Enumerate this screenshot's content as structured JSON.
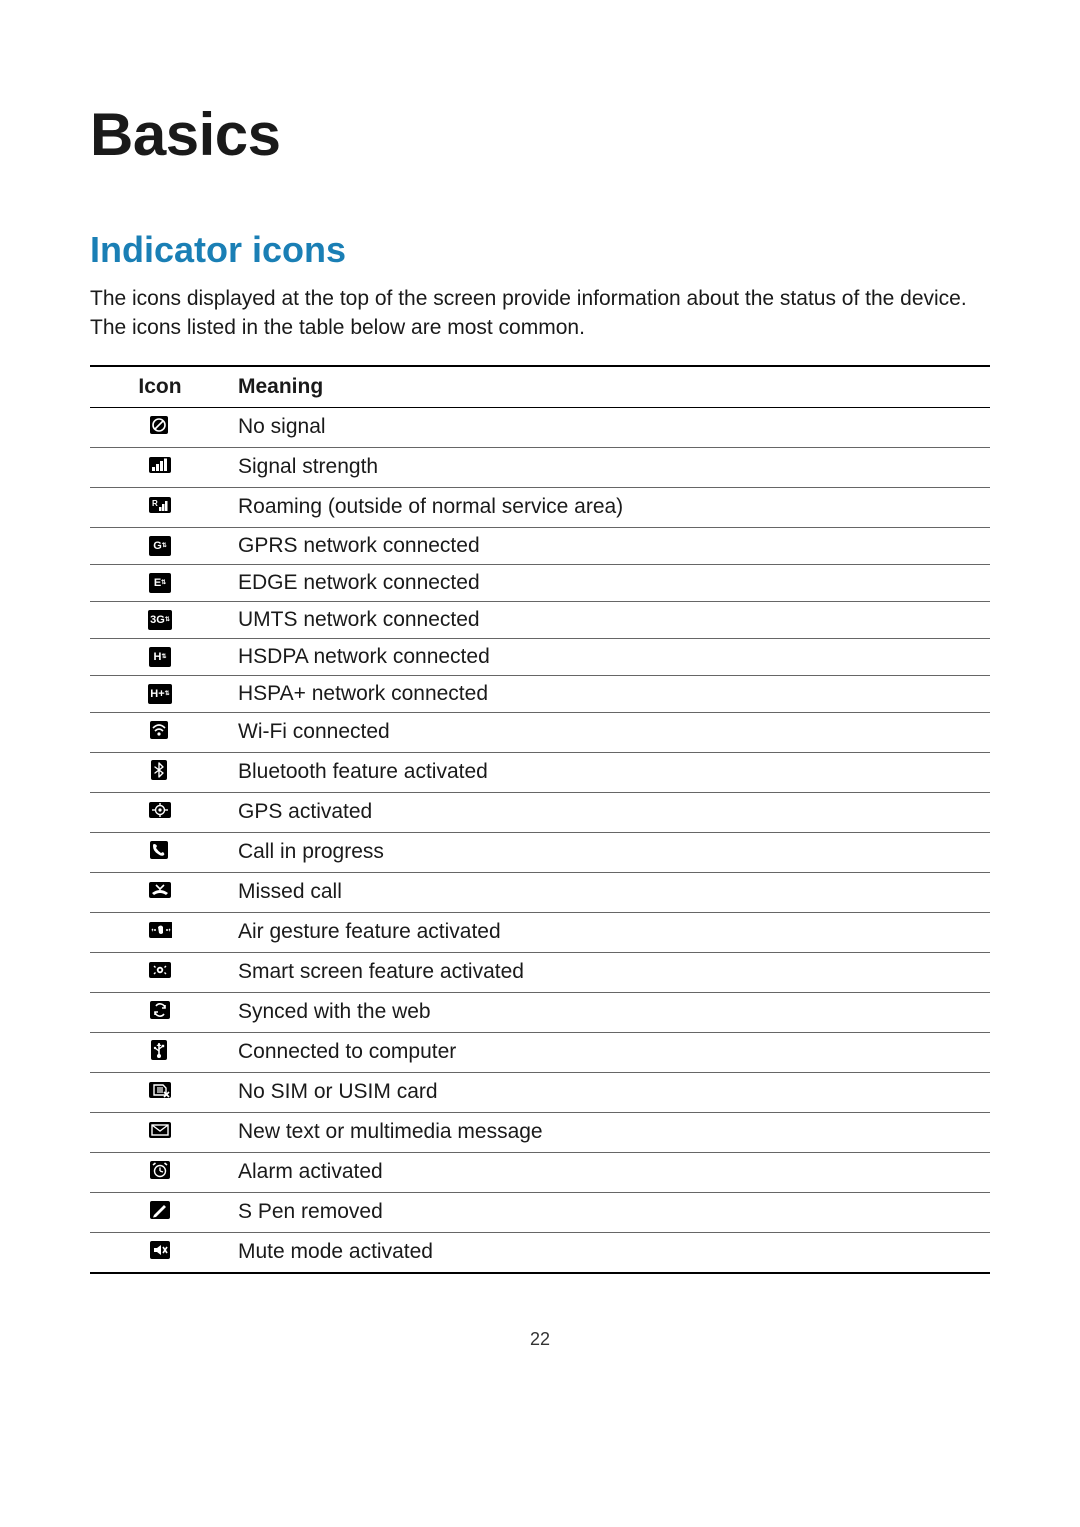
{
  "page": {
    "title": "Basics",
    "section_title": "Indicator icons",
    "section_title_color": "#1a7fb5",
    "intro": "The icons displayed at the top of the screen provide information about the status of the device. The icons listed in the table below are most common.",
    "page_number": "22"
  },
  "table": {
    "columns": [
      "Icon",
      "Meaning"
    ],
    "rows": [
      {
        "icon": "no-signal",
        "meaning": "No signal"
      },
      {
        "icon": "signal",
        "meaning": "Signal strength"
      },
      {
        "icon": "roaming",
        "meaning": "Roaming (outside of normal service area)"
      },
      {
        "icon": "gprs",
        "label": "G",
        "meaning": "GPRS network connected"
      },
      {
        "icon": "edge",
        "label": "E",
        "meaning": "EDGE network connected"
      },
      {
        "icon": "umts",
        "label": "3G",
        "meaning": "UMTS network connected"
      },
      {
        "icon": "hsdpa",
        "label": "H",
        "meaning": "HSDPA network connected"
      },
      {
        "icon": "hspa+",
        "label": "H+",
        "meaning": "HSPA+ network connected"
      },
      {
        "icon": "wifi",
        "meaning": "Wi-Fi connected"
      },
      {
        "icon": "bluetooth",
        "meaning": "Bluetooth feature activated"
      },
      {
        "icon": "gps",
        "meaning": "GPS activated"
      },
      {
        "icon": "call",
        "meaning": "Call in progress"
      },
      {
        "icon": "missed-call",
        "meaning": "Missed call"
      },
      {
        "icon": "air-gesture",
        "meaning": "Air gesture feature activated"
      },
      {
        "icon": "smart-screen",
        "meaning": "Smart screen feature activated"
      },
      {
        "icon": "sync",
        "meaning": "Synced with the web"
      },
      {
        "icon": "usb",
        "meaning": "Connected to computer"
      },
      {
        "icon": "no-sim",
        "meaning": "No SIM or USIM card"
      },
      {
        "icon": "message",
        "meaning": "New text or multimedia message"
      },
      {
        "icon": "alarm",
        "meaning": "Alarm activated"
      },
      {
        "icon": "s-pen",
        "meaning": "S Pen removed"
      },
      {
        "icon": "mute",
        "meaning": "Mute mode activated"
      }
    ]
  },
  "style": {
    "title_fontsize": 60,
    "section_fontsize": 36,
    "body_fontsize": 21,
    "icon_bg": "#000000",
    "icon_fg": "#ffffff",
    "border_color": "#000000",
    "row_border_color": "#666666"
  }
}
